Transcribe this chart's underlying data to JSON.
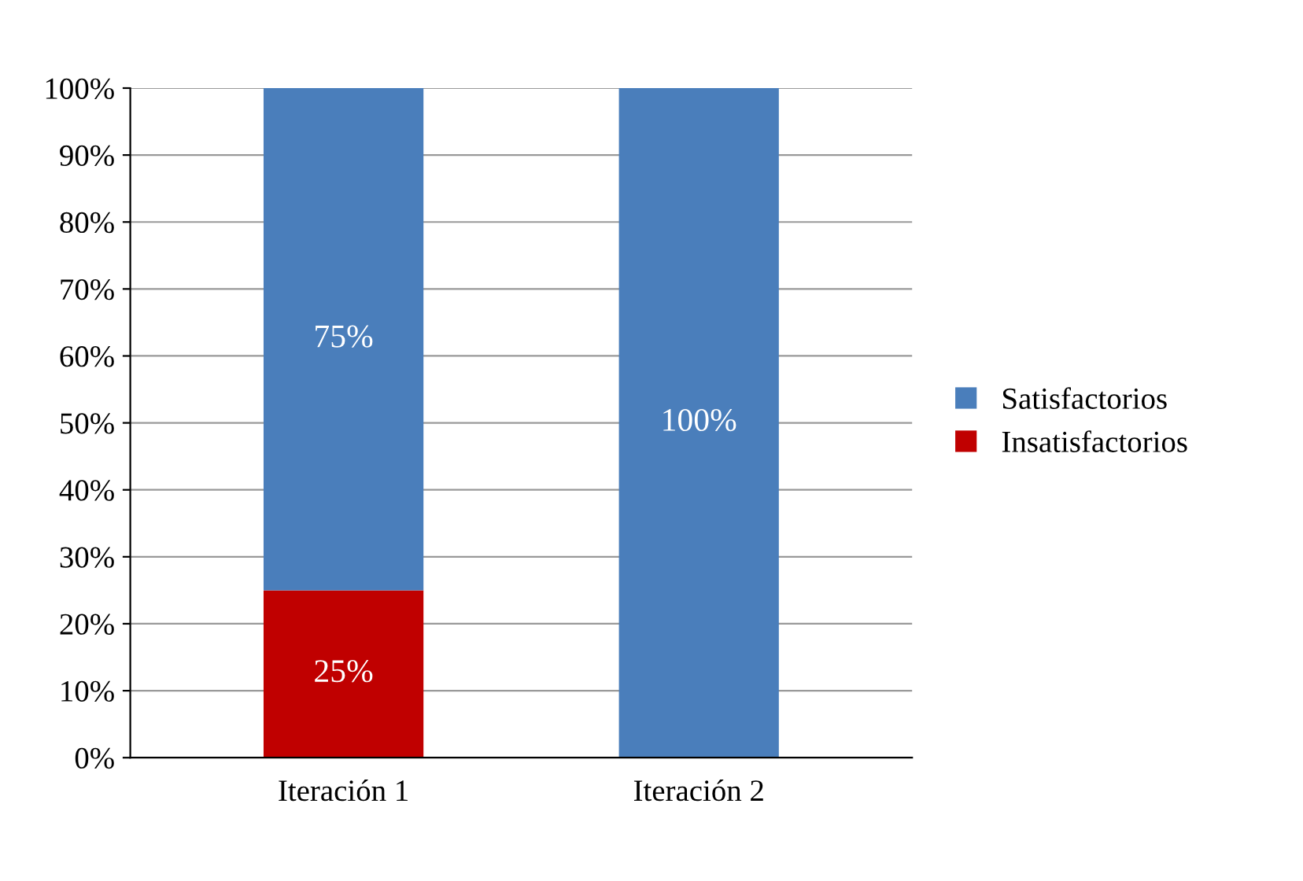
{
  "chart_data": {
    "type": "bar",
    "stacked": true,
    "categories": [
      "Iteración 1",
      "Iteración 2"
    ],
    "series": [
      {
        "name": "Insatisfactorios",
        "color": "#c00000",
        "values": [
          25,
          0
        ],
        "value_labels": [
          "25%",
          null
        ]
      },
      {
        "name": "Satisfactorios",
        "color": "#4a7ebb",
        "values": [
          75,
          100
        ],
        "value_labels": [
          "75%",
          "100%"
        ]
      }
    ],
    "ylim": [
      0,
      100
    ],
    "yticks": [
      {
        "value": 0,
        "label": "0%"
      },
      {
        "value": 10,
        "label": "10%"
      },
      {
        "value": 20,
        "label": "20%"
      },
      {
        "value": 30,
        "label": "30%"
      },
      {
        "value": 40,
        "label": "40%"
      },
      {
        "value": 50,
        "label": "50%"
      },
      {
        "value": 60,
        "label": "60%"
      },
      {
        "value": 70,
        "label": "70%"
      },
      {
        "value": 80,
        "label": "80%"
      },
      {
        "value": 90,
        "label": "90%"
      },
      {
        "value": 100,
        "label": "100%"
      }
    ],
    "grid": "y",
    "legend": "right"
  }
}
